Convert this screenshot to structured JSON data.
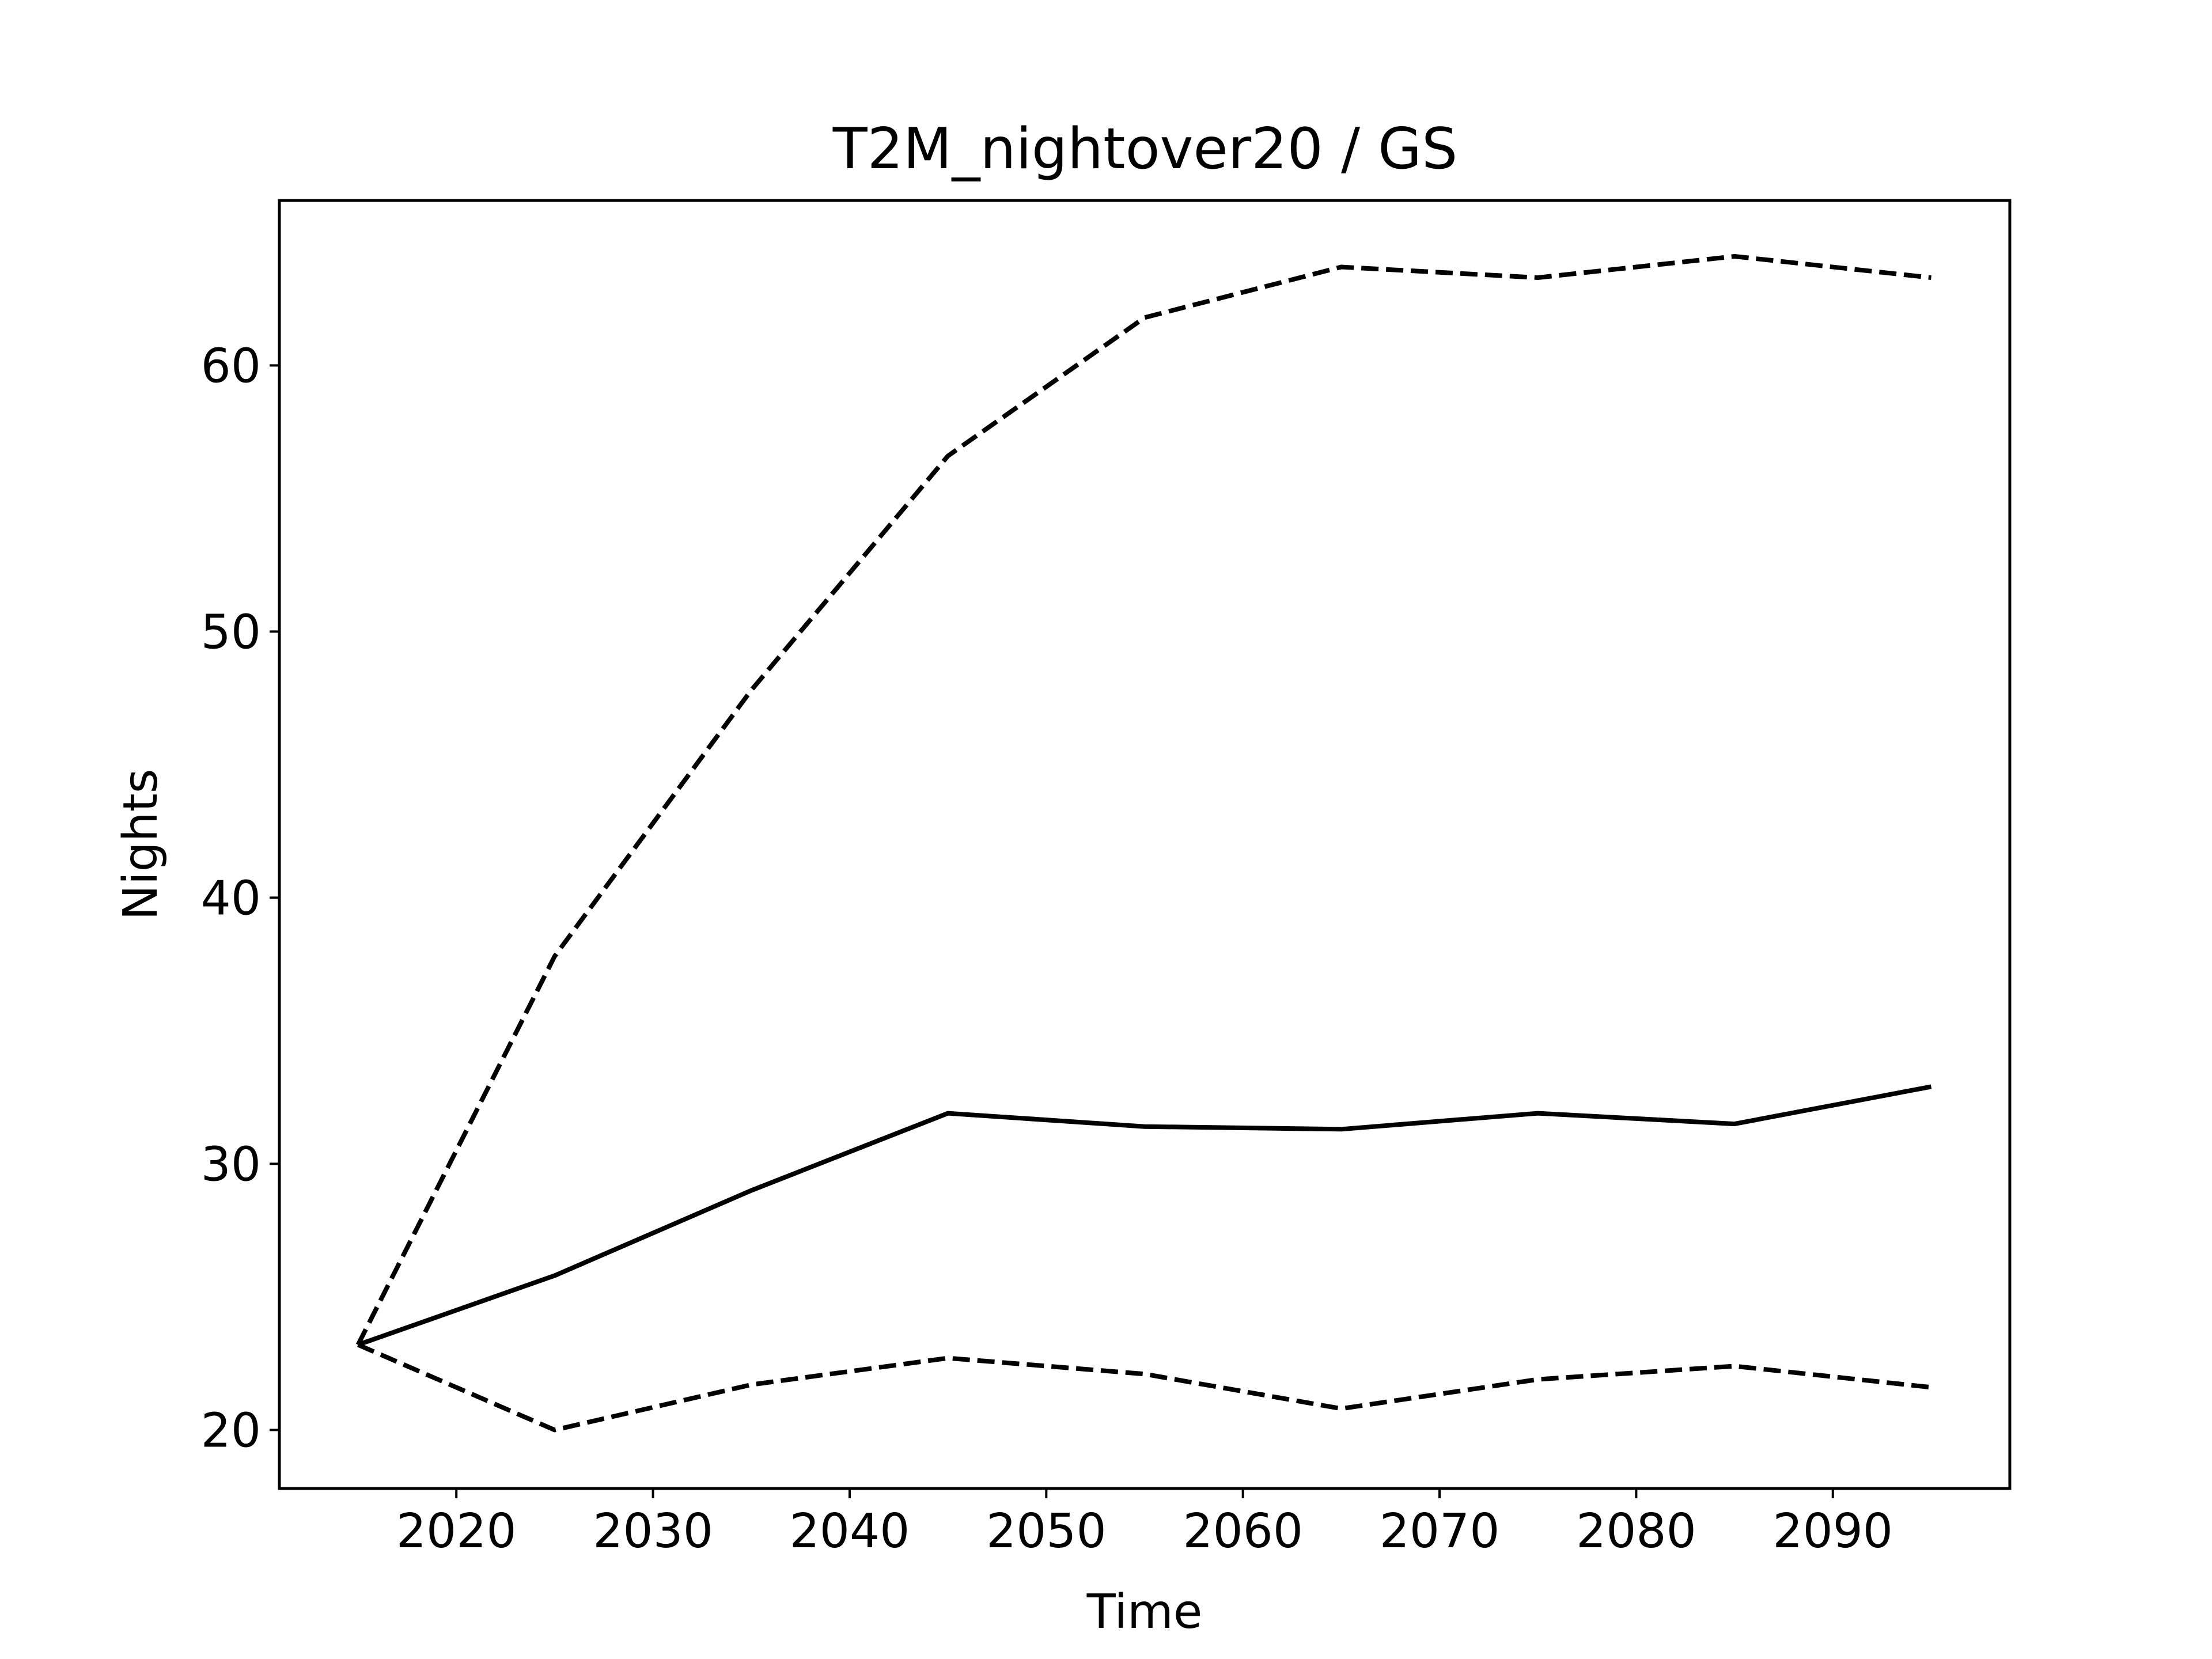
{
  "chart_data": {
    "type": "line",
    "title": "T2M_nightover20 / GS",
    "xlabel": "Time",
    "ylabel": "Nights",
    "xlim": [
      2011,
      2099
    ],
    "ylim": [
      17.8,
      66.2
    ],
    "xticks": [
      2020,
      2030,
      2040,
      2050,
      2060,
      2070,
      2080,
      2090
    ],
    "yticks": [
      20,
      30,
      40,
      50,
      60
    ],
    "grid": false,
    "x": [
      2015,
      2025,
      2035,
      2045,
      2055,
      2065,
      2075,
      2085,
      2095
    ],
    "series": [
      {
        "style": "dashed",
        "color": "#000000",
        "values": [
          23.2,
          37.8,
          47.8,
          56.6,
          61.8,
          63.7,
          63.3,
          64.1,
          63.3
        ]
      },
      {
        "style": "solid",
        "color": "#000000",
        "values": [
          23.2,
          25.8,
          29.0,
          31.9,
          31.4,
          31.3,
          31.9,
          31.5,
          32.9
        ]
      },
      {
        "style": "dashed",
        "color": "#000000",
        "values": [
          23.2,
          20.0,
          21.7,
          22.7,
          22.1,
          20.8,
          21.9,
          22.4,
          21.6
        ]
      }
    ]
  }
}
